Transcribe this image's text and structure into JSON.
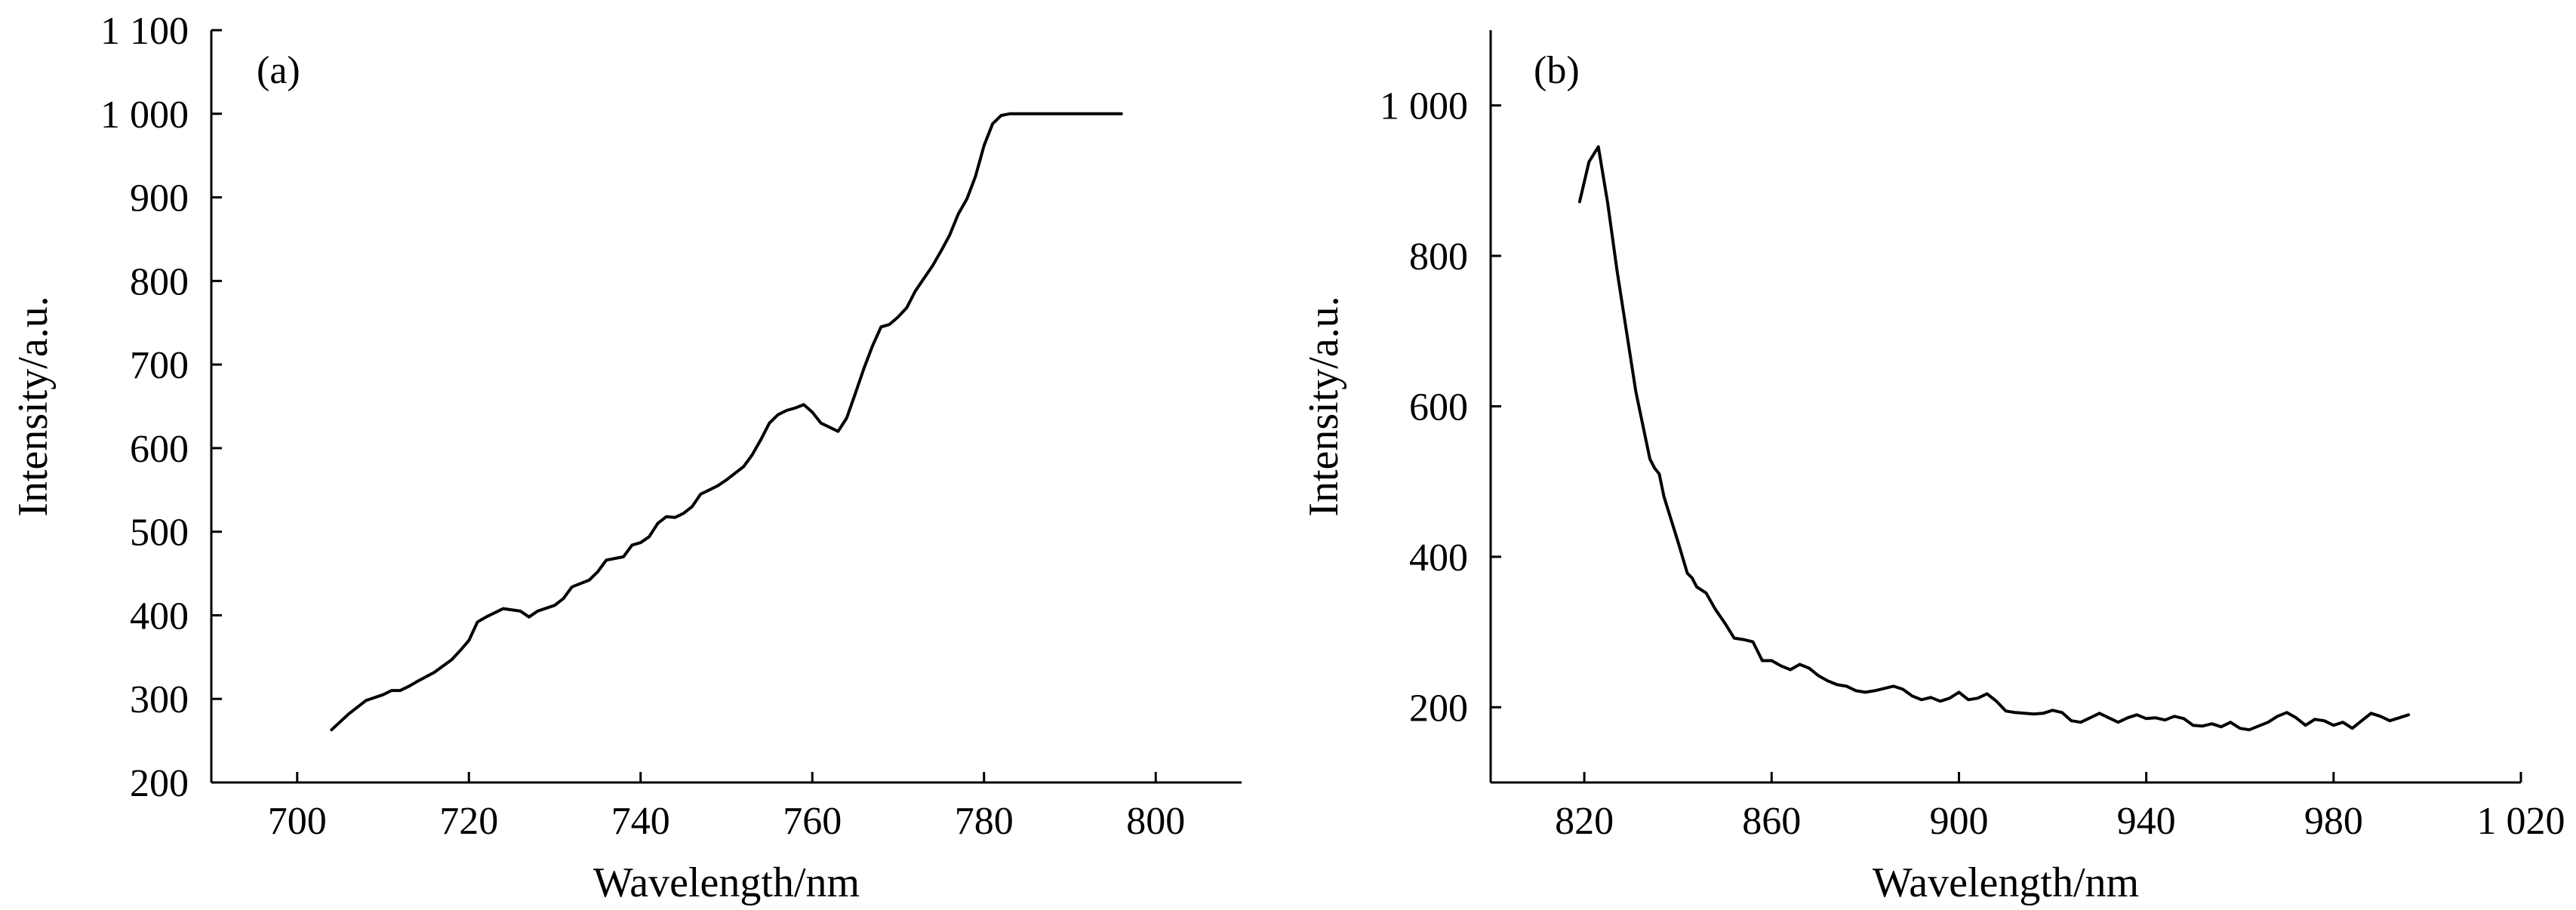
{
  "chart_data": [
    {
      "type": "line",
      "panel_label": "(a)",
      "xlabel": "Wavelength/nm",
      "ylabel": "Intensity/a.u.",
      "xlim": [
        690,
        810
      ],
      "ylim": [
        200,
        1100
      ],
      "xticks": [
        700,
        720,
        740,
        760,
        780,
        800
      ],
      "xtick_labels": [
        "700",
        "720",
        "740",
        "760",
        "780",
        "800"
      ],
      "yticks": [
        200,
        300,
        400,
        500,
        600,
        700,
        800,
        900,
        1000,
        1100
      ],
      "ytick_labels": [
        "200",
        "300",
        "400",
        "500",
        "600",
        "700",
        "800",
        "900",
        "1 000",
        "1 100"
      ],
      "grid": false,
      "series": [
        {
          "x": [
            704,
            706,
            708,
            710,
            711,
            712,
            713,
            714,
            716,
            718,
            719,
            720,
            721,
            722,
            724,
            726,
            727,
            728,
            730,
            731,
            732,
            734,
            735,
            736,
            737,
            738,
            739,
            740,
            741,
            742,
            743,
            744,
            745,
            746,
            747,
            748,
            749,
            750,
            752,
            753,
            754,
            755,
            756,
            757,
            758,
            759,
            760,
            761,
            762,
            763,
            764,
            765,
            766,
            767,
            768,
            769,
            770,
            771,
            772,
            773,
            774,
            775,
            776,
            777,
            778,
            779,
            780,
            781,
            782,
            783,
            785,
            790,
            796
          ],
          "y": [
            263,
            282,
            298,
            305,
            310,
            310,
            315,
            321,
            332,
            347,
            358,
            370,
            392,
            398,
            408,
            405,
            398,
            405,
            412,
            420,
            434,
            442,
            452,
            466,
            468,
            470,
            484,
            487,
            494,
            510,
            518,
            517,
            522,
            530,
            545,
            550,
            555,
            562,
            578,
            592,
            610,
            630,
            640,
            645,
            648,
            652,
            643,
            630,
            625,
            620,
            636,
            665,
            695,
            722,
            745,
            748,
            757,
            768,
            788,
            803,
            818,
            836,
            855,
            880,
            898,
            925,
            962,
            988,
            998,
            1000,
            1000,
            1000,
            1000
          ]
        }
      ]
    },
    {
      "type": "line",
      "panel_label": "(b)",
      "xlabel": "Wavelength/nm",
      "ylabel": "Intensity/a.u.",
      "xlim": [
        800,
        1020
      ],
      "ylim": [
        100,
        1100
      ],
      "xticks": [
        820,
        860,
        900,
        940,
        980,
        1020
      ],
      "xtick_labels": [
        "820",
        "860",
        "900",
        "940",
        "980",
        "1 020"
      ],
      "yticks": [
        200,
        400,
        600,
        800,
        1000
      ],
      "ytick_labels": [
        "200",
        "400",
        "600",
        "800",
        "1 000"
      ],
      "grid": false,
      "series": [
        {
          "x": [
            819,
            821,
            823,
            825,
            827,
            829,
            830,
            831,
            832,
            834,
            835,
            836,
            837,
            838,
            840,
            842,
            843,
            844,
            846,
            848,
            850,
            852,
            854,
            856,
            858,
            860,
            862,
            864,
            866,
            868,
            870,
            872,
            874,
            876,
            878,
            880,
            882,
            884,
            886,
            888,
            890,
            892,
            894,
            896,
            898,
            900,
            902,
            904,
            906,
            908,
            910,
            912,
            914,
            916,
            918,
            920,
            922,
            924,
            926,
            928,
            930,
            932,
            934,
            936,
            938,
            940,
            942,
            944,
            946,
            948,
            950,
            952,
            954,
            956,
            958,
            960,
            962,
            964,
            966,
            968,
            970,
            972,
            974,
            976,
            978,
            980,
            982,
            984,
            986,
            988,
            990,
            992,
            994,
            996
          ],
          "y": [
            872,
            925,
            945,
            870,
            780,
            700,
            660,
            620,
            590,
            530,
            518,
            510,
            480,
            460,
            420,
            378,
            372,
            360,
            352,
            330,
            312,
            292,
            290,
            287,
            262,
            262,
            255,
            250,
            257,
            252,
            242,
            235,
            230,
            228,
            222,
            220,
            222,
            225,
            228,
            224,
            215,
            210,
            213,
            208,
            212,
            220,
            210,
            212,
            218,
            208,
            195,
            193,
            192,
            191,
            192,
            196,
            193,
            182,
            180,
            186,
            192,
            186,
            180,
            186,
            190,
            185,
            186,
            183,
            188,
            185,
            176,
            175,
            178,
            174,
            180,
            172,
            170,
            175,
            180,
            188,
            193,
            186,
            176,
            184,
            182,
            176,
            180,
            172,
            182,
            192,
            188,
            182,
            186,
            190
          ]
        }
      ]
    }
  ]
}
